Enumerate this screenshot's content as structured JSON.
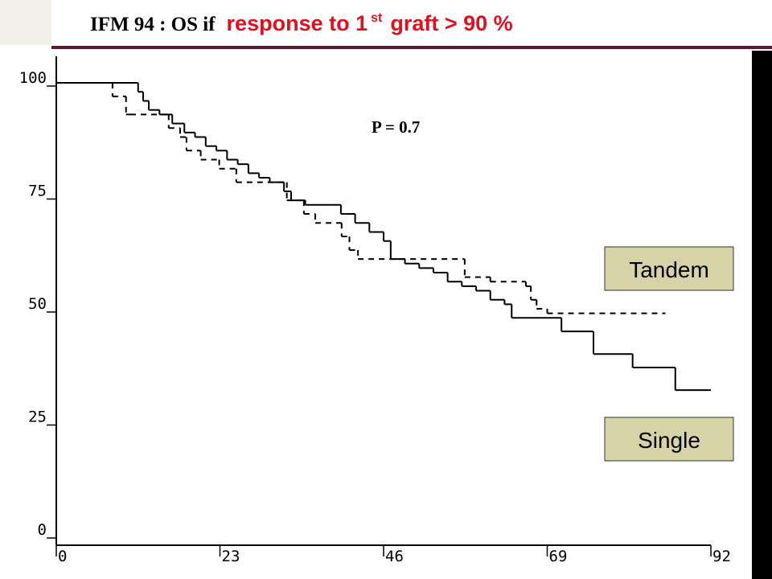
{
  "chart_data": {
    "type": "step",
    "title": [
      "IFM 94 : OS if",
      "response to 1",
      "st",
      "graft > 90 %"
    ],
    "annotation": "P = 0.7",
    "xlim": [
      0,
      92
    ],
    "xticks": [
      0,
      23,
      46,
      69,
      92
    ],
    "ylim": [
      0,
      100
    ],
    "yticks": [
      0,
      25,
      50,
      75,
      100
    ],
    "series": [
      {
        "name": "Tandem",
        "color": "#000000",
        "dash": true,
        "x": [
          0,
          7.9,
          9.8,
          10.4,
          15.8,
          17.4,
          18.3,
          20.3,
          22.9,
          25.3,
          32.4,
          34.8,
          36.4,
          40.1,
          41.2,
          42.4,
          57.4,
          61,
          66,
          66.7,
          67.5,
          69,
          85.6
        ],
        "y": [
          100,
          97,
          93,
          93,
          90,
          88,
          85,
          83,
          81,
          78,
          74,
          71,
          69,
          66,
          63,
          61,
          57,
          56,
          55,
          52,
          50,
          49,
          49
        ]
      },
      {
        "name": "Single",
        "color": "#000000",
        "dash": false,
        "x": [
          0,
          11.5,
          12.2,
          13,
          14.5,
          16.3,
          18,
          19.5,
          21,
          22.5,
          24,
          25.5,
          27,
          28.5,
          30,
          32,
          33,
          35,
          40,
          42,
          44,
          46,
          47,
          49,
          51,
          53,
          55,
          57,
          59,
          61,
          63,
          64,
          71,
          75.5,
          81,
          87,
          92
        ],
        "y": [
          100,
          98,
          96,
          94,
          93,
          91,
          89,
          88,
          86,
          85,
          83,
          82,
          80,
          79,
          78,
          76,
          74,
          73,
          71,
          69,
          67,
          65,
          61,
          60,
          59,
          58,
          56,
          55,
          54,
          52,
          51,
          48,
          45,
          40,
          37,
          32,
          32
        ]
      }
    ]
  }
}
